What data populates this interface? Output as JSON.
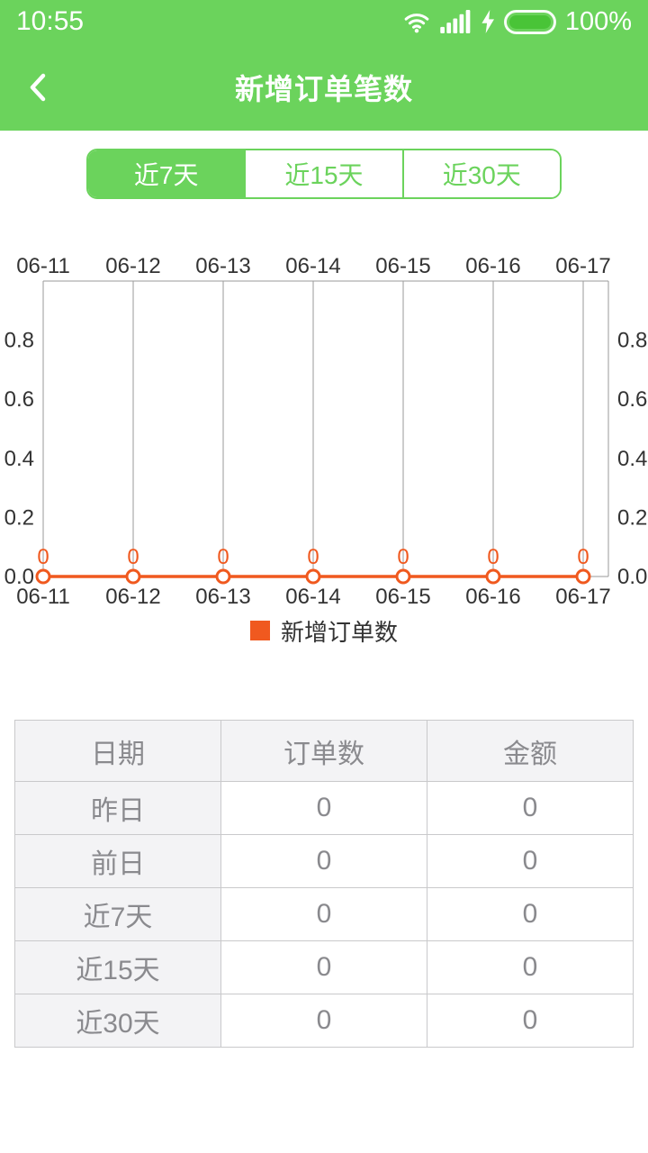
{
  "status_bar": {
    "time": "10:55",
    "battery_percent": "100%"
  },
  "header": {
    "title": "新增订单笔数"
  },
  "tabs": [
    {
      "key": "7days",
      "label": "近7天",
      "selected": true
    },
    {
      "key": "15days",
      "label": "近15天",
      "selected": false
    },
    {
      "key": "30days",
      "label": "近30天",
      "selected": false
    }
  ],
  "chart_data": {
    "type": "line",
    "x": [
      "06-11",
      "06-12",
      "06-13",
      "06-14",
      "06-15",
      "06-16",
      "06-17"
    ],
    "series": [
      {
        "name": "新增订单数",
        "values": [
          0,
          0,
          0,
          0,
          0,
          0,
          0
        ],
        "color": "#f0591f"
      }
    ],
    "data_labels": [
      "0",
      "0",
      "0",
      "0",
      "0",
      "0",
      "0"
    ],
    "ylim": [
      0,
      1
    ],
    "yticks": [
      {
        "value": 0.0,
        "label": "0.0"
      },
      {
        "value": 0.2,
        "label": "0.2"
      },
      {
        "value": 0.4,
        "label": "0.4"
      },
      {
        "value": 0.6,
        "label": "0.6"
      },
      {
        "value": 0.8,
        "label": "0.8"
      }
    ],
    "x_axis_labels_position": "top and bottom",
    "y_axis_labels_position": "left and right",
    "grid": "vertical gridlines only",
    "legend_position": "bottom center"
  },
  "table": {
    "headers": [
      "日期",
      "订单数",
      "金额"
    ],
    "rows": [
      [
        "昨日",
        "0",
        "0"
      ],
      [
        "前日",
        "0",
        "0"
      ],
      [
        "近7天",
        "0",
        "0"
      ],
      [
        "近15天",
        "0",
        "0"
      ],
      [
        "近30天",
        "0",
        "0"
      ]
    ]
  },
  "colors": {
    "primary_green": "#6bd35c",
    "battery_fill": "#49c437",
    "series_orange": "#f0591f",
    "axis_text": "#333333",
    "grid_line": "#9a9a9a",
    "table_border": "#c9c9cb",
    "table_text": "#8a8a8e",
    "table_header_bg": "#f3f3f5"
  }
}
